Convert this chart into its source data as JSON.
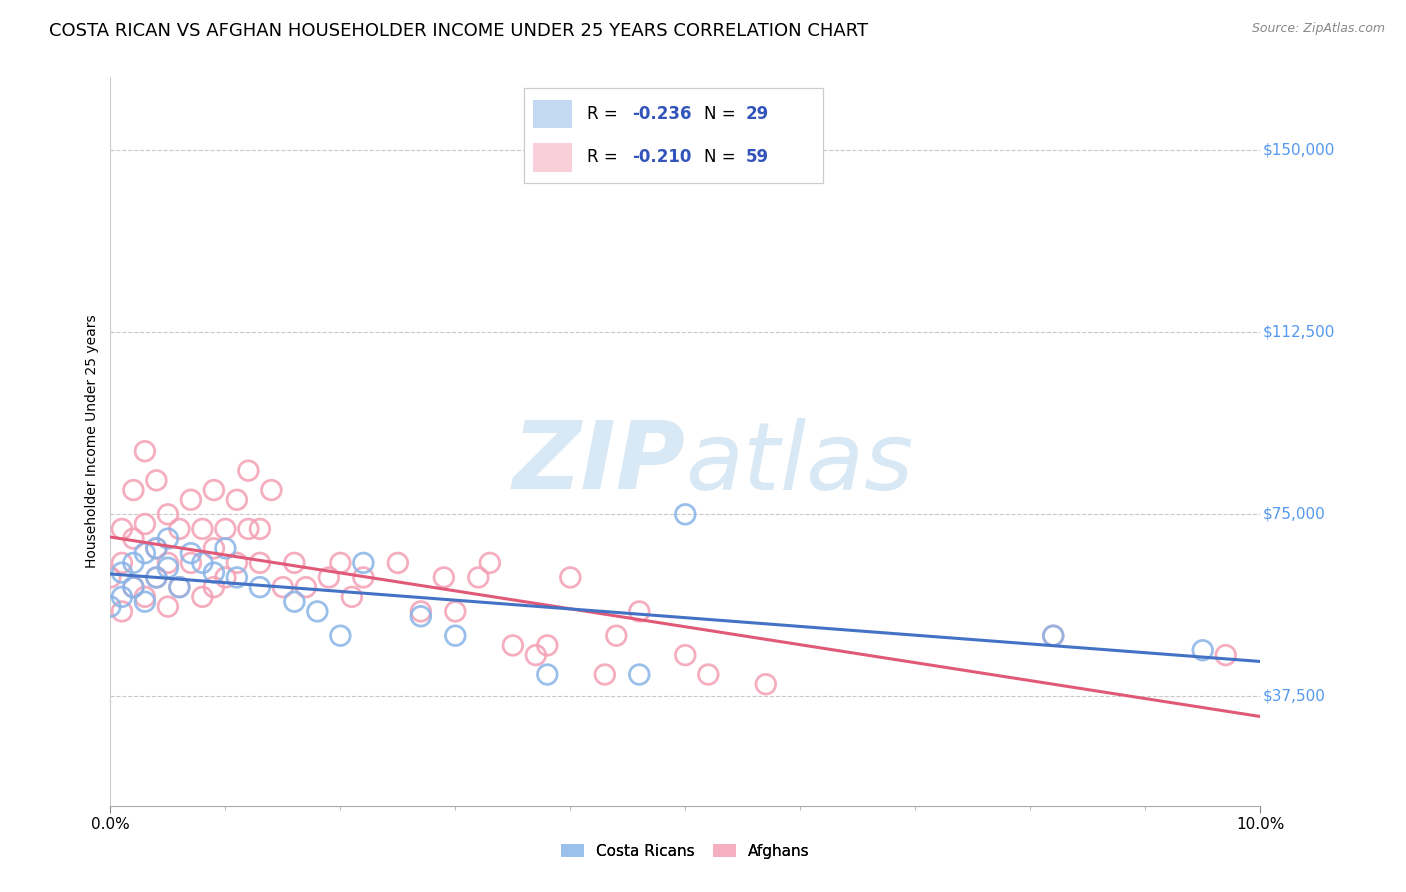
{
  "title": "COSTA RICAN VS AFGHAN HOUSEHOLDER INCOME UNDER 25 YEARS CORRELATION CHART",
  "source": "Source: ZipAtlas.com",
  "ylabel": "Householder Income Under 25 years",
  "ytick_labels": [
    "$37,500",
    "$75,000",
    "$112,500",
    "$150,000"
  ],
  "ytick_values": [
    37500,
    75000,
    112500,
    150000
  ],
  "xlim": [
    0.0,
    0.1
  ],
  "ylim": [
    15000,
    165000
  ],
  "costa_rican_color": "#89b4e8",
  "afghan_color": "#f4a0b4",
  "costa_rican_line_color": "#4472c4",
  "afghan_line_color": "#e05a78",
  "background_color": "#ffffff",
  "grid_color": "#c8c8c8",
  "n_costa_rican": 29,
  "n_afghan": 59,
  "r_label_color": "#3355bb",
  "costa_rican_x": [
    0.0,
    0.001,
    0.001,
    0.002,
    0.002,
    0.003,
    0.003,
    0.004,
    0.004,
    0.005,
    0.005,
    0.006,
    0.007,
    0.008,
    0.009,
    0.01,
    0.011,
    0.013,
    0.016,
    0.018,
    0.02,
    0.022,
    0.027,
    0.03,
    0.038,
    0.046,
    0.05,
    0.082,
    0.095
  ],
  "costa_rican_y": [
    56000,
    58000,
    63000,
    60000,
    65000,
    57000,
    67000,
    62000,
    68000,
    64000,
    70000,
    60000,
    67000,
    65000,
    63000,
    68000,
    62000,
    60000,
    57000,
    55000,
    50000,
    65000,
    54000,
    50000,
    42000,
    42000,
    75000,
    50000,
    47000
  ],
  "afghan_x": [
    0.0,
    0.001,
    0.001,
    0.001,
    0.002,
    0.002,
    0.002,
    0.003,
    0.003,
    0.003,
    0.004,
    0.004,
    0.004,
    0.005,
    0.005,
    0.005,
    0.006,
    0.006,
    0.007,
    0.007,
    0.008,
    0.008,
    0.009,
    0.009,
    0.009,
    0.01,
    0.01,
    0.011,
    0.011,
    0.012,
    0.012,
    0.013,
    0.013,
    0.014,
    0.015,
    0.016,
    0.017,
    0.019,
    0.02,
    0.021,
    0.022,
    0.025,
    0.027,
    0.029,
    0.03,
    0.032,
    0.033,
    0.035,
    0.037,
    0.038,
    0.04,
    0.043,
    0.044,
    0.046,
    0.05,
    0.052,
    0.057,
    0.082,
    0.097
  ],
  "afghan_y": [
    62000,
    55000,
    65000,
    72000,
    60000,
    70000,
    80000,
    58000,
    73000,
    88000,
    62000,
    68000,
    82000,
    56000,
    65000,
    75000,
    60000,
    72000,
    65000,
    78000,
    58000,
    72000,
    60000,
    68000,
    80000,
    62000,
    72000,
    65000,
    78000,
    72000,
    84000,
    65000,
    72000,
    80000,
    60000,
    65000,
    60000,
    62000,
    65000,
    58000,
    62000,
    65000,
    55000,
    62000,
    55000,
    62000,
    65000,
    48000,
    46000,
    48000,
    62000,
    42000,
    50000,
    55000,
    46000,
    42000,
    40000,
    50000,
    46000
  ],
  "watermark_zip": "ZIP",
  "watermark_atlas": "atlas",
  "title_fontsize": 13,
  "axis_label_fontsize": 10,
  "tick_fontsize": 11,
  "legend_fontsize": 12
}
